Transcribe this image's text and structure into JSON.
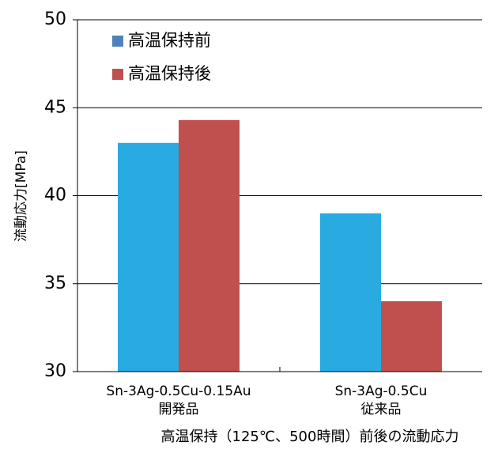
{
  "chart_data": {
    "type": "bar",
    "title": "",
    "caption": "高温保持（125℃、500時間）前後の流動応力",
    "ylabel": "流動応力[MPa]",
    "xlabel": "",
    "ylim": [
      30,
      50
    ],
    "yticks": [
      30,
      35,
      40,
      45,
      50
    ],
    "grid": true,
    "legend_position": "top-left",
    "categories": [
      [
        "Sn-3Ag-0.5Cu-0.15Au",
        "開発品"
      ],
      [
        "Sn-3Ag-0.5Cu",
        "従来品"
      ]
    ],
    "series": [
      {
        "name": "高温保持前",
        "color": "#29abe2",
        "legend_color": "#4f81bd",
        "values": [
          43,
          39
        ]
      },
      {
        "name": "高温保持後",
        "color": "#c0504d",
        "legend_color": "#c0504d",
        "values": [
          44.3,
          34
        ]
      }
    ]
  }
}
